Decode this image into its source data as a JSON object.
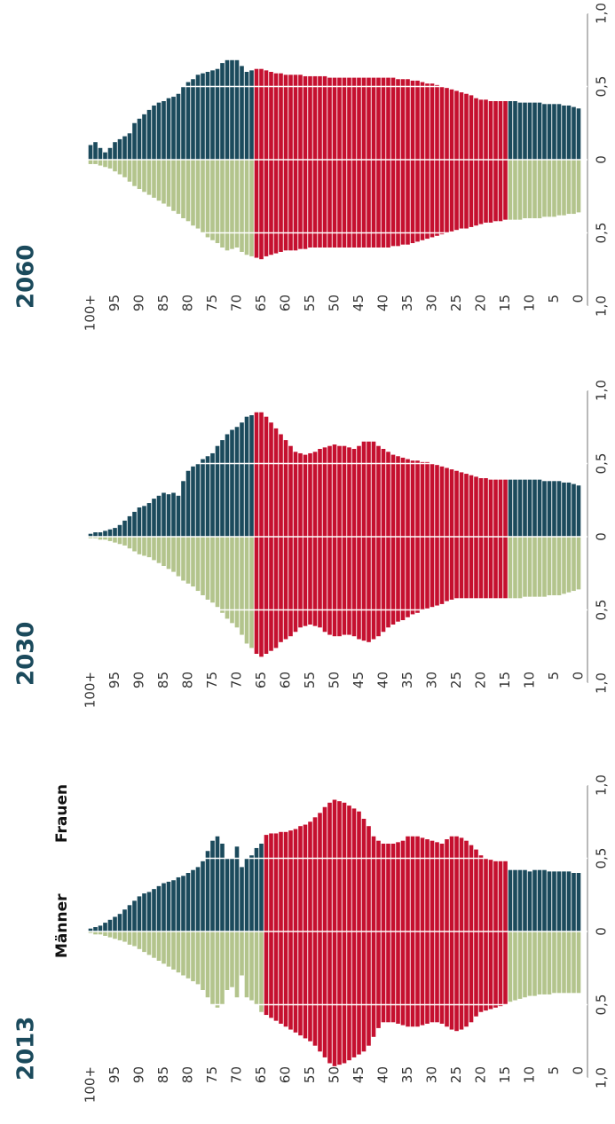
{
  "chart_data": [
    {
      "type": "pyramid",
      "title": "2013",
      "x": [
        0,
        1,
        2,
        3,
        4,
        5,
        6,
        7,
        8,
        9,
        10,
        11,
        12,
        13,
        14,
        15,
        16,
        17,
        18,
        19,
        20,
        21,
        22,
        23,
        24,
        25,
        26,
        27,
        28,
        29,
        30,
        31,
        32,
        33,
        34,
        35,
        36,
        37,
        38,
        39,
        40,
        41,
        42,
        43,
        44,
        45,
        46,
        47,
        48,
        49,
        50,
        51,
        52,
        53,
        54,
        55,
        56,
        57,
        58,
        59,
        60,
        61,
        62,
        63,
        64,
        65,
        66,
        67,
        68,
        69,
        70,
        71,
        72,
        73,
        74,
        75,
        76,
        77,
        78,
        79,
        80,
        81,
        82,
        83,
        84,
        85,
        86,
        87,
        88,
        89,
        90,
        91,
        92,
        93,
        94,
        95,
        96,
        97,
        98,
        99,
        100
      ],
      "xlim": [
        0,
        100
      ],
      "xticks": [
        0,
        5,
        10,
        15,
        20,
        25,
        30,
        35,
        40,
        45,
        50,
        55,
        60,
        65,
        70,
        75,
        80,
        85,
        90,
        95,
        {
          "value": 100,
          "label": "100+"
        }
      ],
      "ylim": [
        0,
        1
      ],
      "yticks": [
        0,
        {
          "value": 0.5,
          "label": "0,5"
        },
        {
          "value": 1,
          "label": "1,0"
        }
      ],
      "grid": true,
      "highlight_range": [
        15,
        64
      ],
      "highlight_color": "#c5102f",
      "series": [
        {
          "name": "Männer",
          "color": "#b3c48c",
          "side": "lower",
          "values": [
            0.42,
            0.42,
            0.42,
            0.42,
            0.42,
            0.42,
            0.43,
            0.43,
            0.43,
            0.44,
            0.44,
            0.45,
            0.46,
            0.47,
            0.48,
            0.5,
            0.51,
            0.52,
            0.53,
            0.54,
            0.55,
            0.58,
            0.62,
            0.65,
            0.67,
            0.68,
            0.67,
            0.65,
            0.63,
            0.62,
            0.62,
            0.63,
            0.64,
            0.65,
            0.65,
            0.65,
            0.64,
            0.63,
            0.62,
            0.62,
            0.62,
            0.66,
            0.72,
            0.78,
            0.82,
            0.84,
            0.86,
            0.88,
            0.9,
            0.91,
            0.92,
            0.9,
            0.86,
            0.82,
            0.78,
            0.75,
            0.73,
            0.71,
            0.69,
            0.67,
            0.65,
            0.63,
            0.61,
            0.59,
            0.57,
            0.55,
            0.5,
            0.47,
            0.45,
            0.3,
            0.45,
            0.38,
            0.4,
            0.5,
            0.52,
            0.5,
            0.45,
            0.4,
            0.36,
            0.34,
            0.32,
            0.3,
            0.28,
            0.26,
            0.24,
            0.22,
            0.2,
            0.18,
            0.16,
            0.14,
            0.12,
            0.1,
            0.09,
            0.07,
            0.06,
            0.05,
            0.04,
            0.03,
            0.02,
            0.02,
            0.01
          ]
        },
        {
          "name": "Frauen",
          "color": "#1b4a5c",
          "side": "upper",
          "values": [
            0.4,
            0.4,
            0.41,
            0.41,
            0.41,
            0.41,
            0.41,
            0.42,
            0.42,
            0.42,
            0.41,
            0.42,
            0.42,
            0.42,
            0.42,
            0.48,
            0.48,
            0.48,
            0.49,
            0.5,
            0.52,
            0.56,
            0.59,
            0.62,
            0.64,
            0.65,
            0.65,
            0.63,
            0.6,
            0.61,
            0.62,
            0.63,
            0.64,
            0.65,
            0.65,
            0.65,
            0.62,
            0.61,
            0.6,
            0.6,
            0.6,
            0.62,
            0.65,
            0.72,
            0.77,
            0.82,
            0.84,
            0.86,
            0.88,
            0.89,
            0.9,
            0.88,
            0.85,
            0.81,
            0.78,
            0.75,
            0.73,
            0.72,
            0.7,
            0.69,
            0.68,
            0.68,
            0.67,
            0.67,
            0.66,
            0.6,
            0.57,
            0.52,
            0.5,
            0.44,
            0.58,
            0.5,
            0.5,
            0.6,
            0.65,
            0.62,
            0.55,
            0.48,
            0.44,
            0.42,
            0.4,
            0.38,
            0.37,
            0.35,
            0.34,
            0.33,
            0.31,
            0.29,
            0.27,
            0.26,
            0.24,
            0.21,
            0.18,
            0.15,
            0.12,
            0.1,
            0.08,
            0.06,
            0.04,
            0.03,
            0.02
          ]
        }
      ]
    },
    {
      "type": "pyramid",
      "title": "2030",
      "x": [
        0,
        1,
        2,
        3,
        4,
        5,
        6,
        7,
        8,
        9,
        10,
        11,
        12,
        13,
        14,
        15,
        16,
        17,
        18,
        19,
        20,
        21,
        22,
        23,
        24,
        25,
        26,
        27,
        28,
        29,
        30,
        31,
        32,
        33,
        34,
        35,
        36,
        37,
        38,
        39,
        40,
        41,
        42,
        43,
        44,
        45,
        46,
        47,
        48,
        49,
        50,
        51,
        52,
        53,
        54,
        55,
        56,
        57,
        58,
        59,
        60,
        61,
        62,
        63,
        64,
        65,
        66,
        67,
        68,
        69,
        70,
        71,
        72,
        73,
        74,
        75,
        76,
        77,
        78,
        79,
        80,
        81,
        82,
        83,
        84,
        85,
        86,
        87,
        88,
        89,
        90,
        91,
        92,
        93,
        94,
        95,
        96,
        97,
        98,
        99,
        100
      ],
      "xlim": [
        0,
        100
      ],
      "xticks": [
        0,
        5,
        10,
        15,
        20,
        25,
        30,
        35,
        40,
        45,
        50,
        55,
        60,
        65,
        70,
        75,
        80,
        85,
        90,
        95,
        {
          "value": 100,
          "label": "100+"
        }
      ],
      "ylim": [
        0,
        1
      ],
      "yticks": [
        0,
        {
          "value": 0.5,
          "label": "0,5"
        },
        {
          "value": 1,
          "label": "1,0"
        }
      ],
      "grid": true,
      "highlight_range": [
        15,
        66
      ],
      "highlight_color": "#c5102f",
      "series": [
        {
          "color": "#b3c48c",
          "side": "lower",
          "values": [
            0.36,
            0.37,
            0.38,
            0.39,
            0.4,
            0.4,
            0.4,
            0.41,
            0.41,
            0.41,
            0.41,
            0.41,
            0.42,
            0.42,
            0.42,
            0.42,
            0.42,
            0.42,
            0.42,
            0.42,
            0.42,
            0.42,
            0.42,
            0.42,
            0.42,
            0.42,
            0.43,
            0.44,
            0.46,
            0.47,
            0.48,
            0.49,
            0.5,
            0.52,
            0.53,
            0.55,
            0.57,
            0.58,
            0.6,
            0.62,
            0.65,
            0.68,
            0.7,
            0.72,
            0.71,
            0.7,
            0.68,
            0.67,
            0.67,
            0.68,
            0.68,
            0.67,
            0.65,
            0.62,
            0.61,
            0.6,
            0.61,
            0.62,
            0.65,
            0.68,
            0.7,
            0.72,
            0.76,
            0.78,
            0.8,
            0.82,
            0.8,
            0.76,
            0.73,
            0.67,
            0.62,
            0.59,
            0.56,
            0.52,
            0.48,
            0.45,
            0.43,
            0.4,
            0.37,
            0.34,
            0.32,
            0.3,
            0.27,
            0.24,
            0.22,
            0.2,
            0.18,
            0.16,
            0.14,
            0.13,
            0.12,
            0.1,
            0.08,
            0.06,
            0.05,
            0.04,
            0.03,
            0.02,
            0.02,
            0.01,
            0.01
          ]
        },
        {
          "color": "#1b4a5c",
          "side": "upper",
          "values": [
            0.35,
            0.36,
            0.37,
            0.37,
            0.38,
            0.38,
            0.38,
            0.38,
            0.39,
            0.39,
            0.39,
            0.39,
            0.39,
            0.39,
            0.39,
            0.39,
            0.39,
            0.39,
            0.39,
            0.4,
            0.4,
            0.41,
            0.42,
            0.43,
            0.44,
            0.45,
            0.46,
            0.47,
            0.48,
            0.49,
            0.5,
            0.51,
            0.51,
            0.52,
            0.52,
            0.53,
            0.54,
            0.55,
            0.56,
            0.58,
            0.6,
            0.62,
            0.65,
            0.65,
            0.65,
            0.62,
            0.6,
            0.61,
            0.62,
            0.62,
            0.63,
            0.62,
            0.61,
            0.6,
            0.58,
            0.57,
            0.56,
            0.57,
            0.58,
            0.62,
            0.66,
            0.7,
            0.74,
            0.78,
            0.82,
            0.85,
            0.85,
            0.83,
            0.82,
            0.78,
            0.75,
            0.73,
            0.7,
            0.66,
            0.62,
            0.57,
            0.55,
            0.53,
            0.5,
            0.48,
            0.45,
            0.38,
            0.28,
            0.3,
            0.29,
            0.3,
            0.28,
            0.26,
            0.23,
            0.21,
            0.2,
            0.17,
            0.14,
            0.11,
            0.08,
            0.06,
            0.05,
            0.04,
            0.03,
            0.03,
            0.02
          ]
        }
      ]
    },
    {
      "type": "pyramid",
      "title": "2060",
      "x": [
        0,
        1,
        2,
        3,
        4,
        5,
        6,
        7,
        8,
        9,
        10,
        11,
        12,
        13,
        14,
        15,
        16,
        17,
        18,
        19,
        20,
        21,
        22,
        23,
        24,
        25,
        26,
        27,
        28,
        29,
        30,
        31,
        32,
        33,
        34,
        35,
        36,
        37,
        38,
        39,
        40,
        41,
        42,
        43,
        44,
        45,
        46,
        47,
        48,
        49,
        50,
        51,
        52,
        53,
        54,
        55,
        56,
        57,
        58,
        59,
        60,
        61,
        62,
        63,
        64,
        65,
        66,
        67,
        68,
        69,
        70,
        71,
        72,
        73,
        74,
        75,
        76,
        77,
        78,
        79,
        80,
        81,
        82,
        83,
        84,
        85,
        86,
        87,
        88,
        89,
        90,
        91,
        92,
        93,
        94,
        95,
        96,
        97,
        98,
        99,
        100
      ],
      "xlim": [
        0,
        100
      ],
      "xticks": [
        0,
        5,
        10,
        15,
        20,
        25,
        30,
        35,
        40,
        45,
        50,
        55,
        60,
        65,
        70,
        75,
        80,
        85,
        90,
        95,
        {
          "value": 100,
          "label": "100+"
        }
      ],
      "ylim": [
        0,
        1
      ],
      "yticks": [
        0,
        {
          "value": 0.5,
          "label": "0,5"
        },
        {
          "value": 1,
          "label": "1,0"
        }
      ],
      "grid": true,
      "highlight_range": [
        15,
        66
      ],
      "highlight_color": "#c5102f",
      "series": [
        {
          "color": "#b3c48c",
          "side": "lower",
          "values": [
            0.36,
            0.37,
            0.37,
            0.38,
            0.38,
            0.39,
            0.39,
            0.39,
            0.4,
            0.4,
            0.4,
            0.4,
            0.41,
            0.41,
            0.41,
            0.41,
            0.42,
            0.42,
            0.43,
            0.43,
            0.44,
            0.45,
            0.46,
            0.47,
            0.47,
            0.48,
            0.49,
            0.5,
            0.51,
            0.52,
            0.53,
            0.54,
            0.55,
            0.56,
            0.57,
            0.58,
            0.58,
            0.59,
            0.59,
            0.6,
            0.6,
            0.6,
            0.6,
            0.6,
            0.6,
            0.6,
            0.6,
            0.6,
            0.6,
            0.6,
            0.6,
            0.6,
            0.6,
            0.6,
            0.6,
            0.6,
            0.61,
            0.61,
            0.62,
            0.62,
            0.62,
            0.63,
            0.64,
            0.65,
            0.66,
            0.68,
            0.67,
            0.66,
            0.65,
            0.63,
            0.6,
            0.61,
            0.62,
            0.6,
            0.57,
            0.55,
            0.53,
            0.5,
            0.47,
            0.45,
            0.42,
            0.4,
            0.37,
            0.35,
            0.32,
            0.3,
            0.28,
            0.26,
            0.24,
            0.22,
            0.2,
            0.18,
            0.15,
            0.12,
            0.1,
            0.08,
            0.06,
            0.05,
            0.04,
            0.03,
            0.03
          ]
        },
        {
          "color": "#1b4a5c",
          "side": "upper",
          "values": [
            0.35,
            0.36,
            0.37,
            0.37,
            0.38,
            0.38,
            0.38,
            0.38,
            0.39,
            0.39,
            0.39,
            0.39,
            0.39,
            0.4,
            0.4,
            0.4,
            0.4,
            0.4,
            0.4,
            0.41,
            0.41,
            0.42,
            0.44,
            0.45,
            0.46,
            0.47,
            0.48,
            0.49,
            0.5,
            0.51,
            0.52,
            0.52,
            0.53,
            0.54,
            0.54,
            0.55,
            0.55,
            0.55,
            0.56,
            0.56,
            0.56,
            0.56,
            0.56,
            0.56,
            0.56,
            0.56,
            0.56,
            0.56,
            0.56,
            0.56,
            0.56,
            0.56,
            0.57,
            0.57,
            0.57,
            0.57,
            0.57,
            0.58,
            0.58,
            0.58,
            0.58,
            0.59,
            0.59,
            0.6,
            0.61,
            0.62,
            0.62,
            0.61,
            0.6,
            0.64,
            0.68,
            0.68,
            0.68,
            0.66,
            0.62,
            0.61,
            0.6,
            0.59,
            0.58,
            0.55,
            0.53,
            0.5,
            0.45,
            0.43,
            0.42,
            0.4,
            0.39,
            0.37,
            0.34,
            0.31,
            0.28,
            0.25,
            0.18,
            0.16,
            0.14,
            0.12,
            0.08,
            0.05,
            0.08,
            0.12,
            0.1
          ]
        }
      ]
    }
  ]
}
